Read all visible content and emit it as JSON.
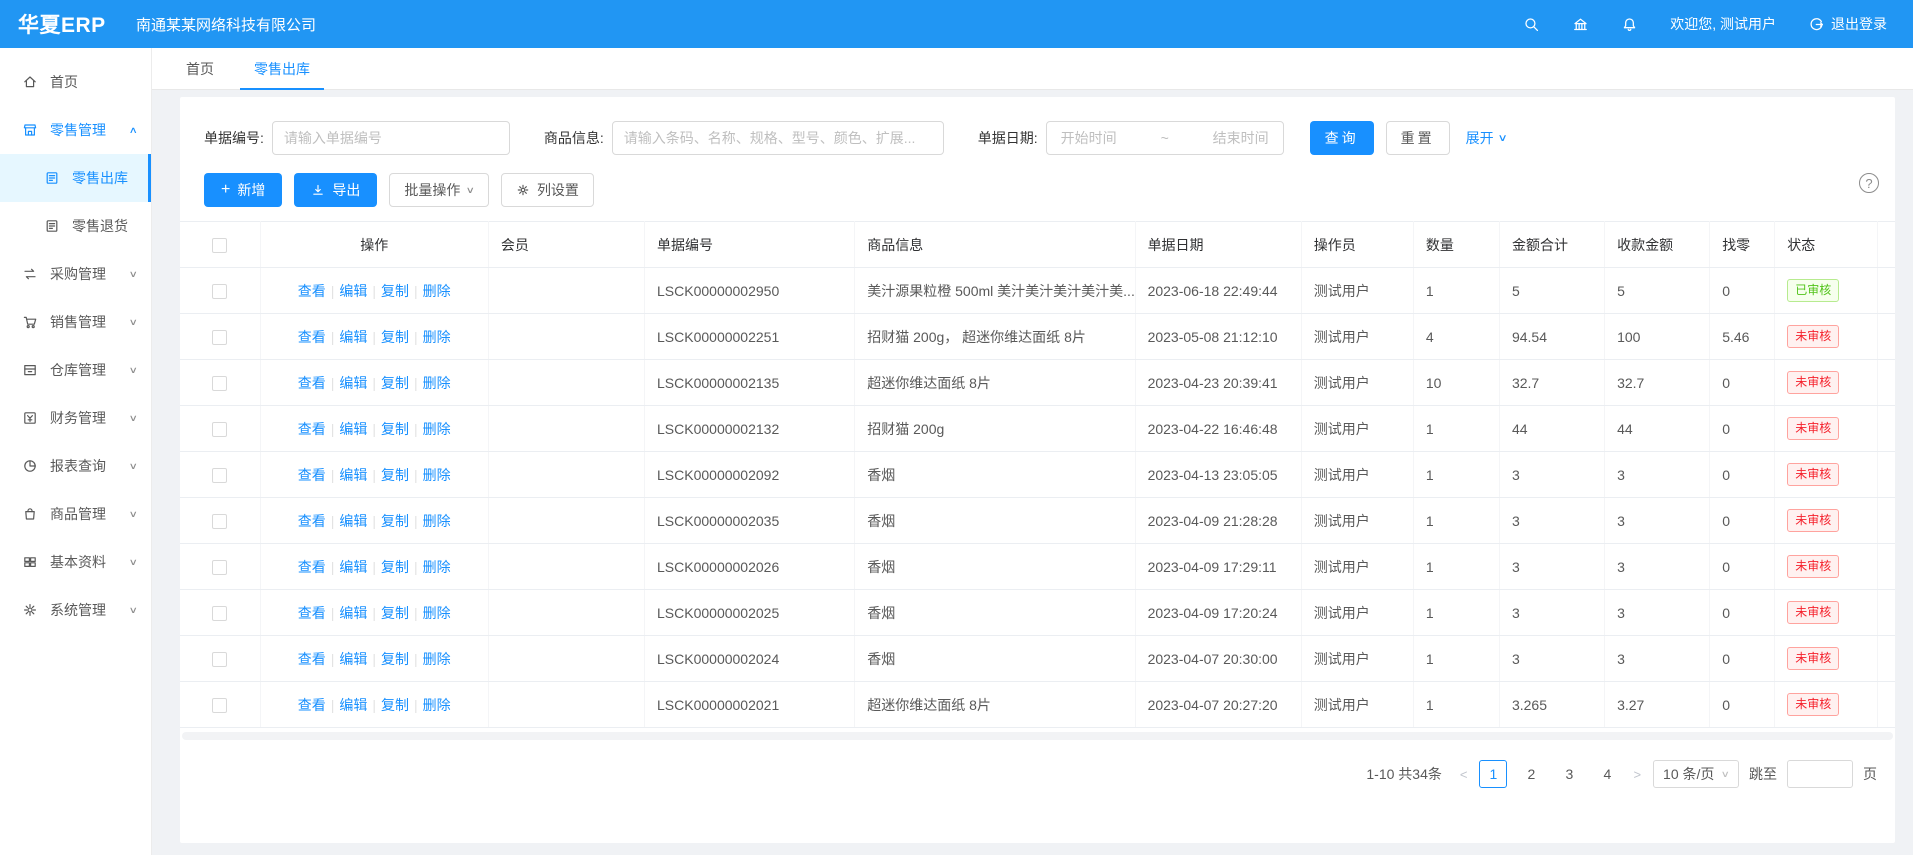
{
  "topbar": {
    "logo": "华夏ERP",
    "company": "南通某某网络科技有限公司",
    "welcome": "欢迎您, 测试用户",
    "logout": "退出登录"
  },
  "sidebar": {
    "items": [
      {
        "label": "首页",
        "icon": "home"
      },
      {
        "label": "零售管理",
        "icon": "shop",
        "state": "open",
        "arrow": "up",
        "children": [
          {
            "label": "零售出库",
            "icon": "doc",
            "active": true
          },
          {
            "label": "零售退货",
            "icon": "doc",
            "active": false
          }
        ]
      },
      {
        "label": "采购管理",
        "icon": "swap",
        "arrow": "down"
      },
      {
        "label": "销售管理",
        "icon": "cart",
        "arrow": "down"
      },
      {
        "label": "仓库管理",
        "icon": "box",
        "arrow": "down"
      },
      {
        "label": "财务管理",
        "icon": "money",
        "arrow": "down"
      },
      {
        "label": "报表查询",
        "icon": "pie",
        "arrow": "down"
      },
      {
        "label": "商品管理",
        "icon": "bag",
        "arrow": "down"
      },
      {
        "label": "基本资料",
        "icon": "grid",
        "arrow": "down"
      },
      {
        "label": "系统管理",
        "icon": "gear",
        "arrow": "down"
      }
    ]
  },
  "tabs": [
    {
      "label": "首页",
      "active": false
    },
    {
      "label": "零售出库",
      "active": true
    }
  ],
  "filters": {
    "bill_no_label": "单据编号:",
    "bill_no_placeholder": "请输入单据编号",
    "product_label": "商品信息:",
    "product_placeholder": "请输入条码、名称、规格、型号、颜色、扩展...",
    "date_label": "单据日期:",
    "date_start_placeholder": "开始时间",
    "date_separator": "~",
    "date_end_placeholder": "结束时间",
    "search_button": "查询",
    "reset_button": "重置",
    "expand_link": "展开"
  },
  "toolbar": {
    "add_button": "新增",
    "export_button": "导出",
    "batch_button": "批量操作",
    "columns_button": "列设置",
    "help": "?"
  },
  "table": {
    "columns": [
      "",
      "操作",
      "会员",
      "单据编号",
      "商品信息",
      "单据日期",
      "操作员",
      "数量",
      "金额合计",
      "收款金额",
      "找零",
      "状态"
    ],
    "action_labels": [
      "查看",
      "编辑",
      "复制",
      "删除"
    ],
    "rows": [
      {
        "member": "",
        "order_no": "LSCK00000002950",
        "product": "美汁源果粒橙 500ml 美汁美汁美汁美汁美...",
        "date": "2023-06-18 22:49:44",
        "operator": "测试用户",
        "qty": "1",
        "total": "5",
        "received": "5",
        "change": "0",
        "status": "已审核",
        "status_type": "approved"
      },
      {
        "member": "",
        "order_no": "LSCK00000002251",
        "product": "招财猫 200g， 超迷你维达面纸 8片",
        "date": "2023-05-08 21:12:10",
        "operator": "测试用户",
        "qty": "4",
        "total": "94.54",
        "received": "100",
        "change": "5.46",
        "status": "未审核",
        "status_type": "pending"
      },
      {
        "member": "",
        "order_no": "LSCK00000002135",
        "product": "超迷你维达面纸 8片",
        "date": "2023-04-23 20:39:41",
        "operator": "测试用户",
        "qty": "10",
        "total": "32.7",
        "received": "32.7",
        "change": "0",
        "status": "未审核",
        "status_type": "pending"
      },
      {
        "member": "",
        "order_no": "LSCK00000002132",
        "product": "招财猫 200g",
        "date": "2023-04-22 16:46:48",
        "operator": "测试用户",
        "qty": "1",
        "total": "44",
        "received": "44",
        "change": "0",
        "status": "未审核",
        "status_type": "pending"
      },
      {
        "member": "",
        "order_no": "LSCK00000002092",
        "product": "香烟",
        "date": "2023-04-13 23:05:05",
        "operator": "测试用户",
        "qty": "1",
        "total": "3",
        "received": "3",
        "change": "0",
        "status": "未审核",
        "status_type": "pending"
      },
      {
        "member": "",
        "order_no": "LSCK00000002035",
        "product": "香烟",
        "date": "2023-04-09 21:28:28",
        "operator": "测试用户",
        "qty": "1",
        "total": "3",
        "received": "3",
        "change": "0",
        "status": "未审核",
        "status_type": "pending"
      },
      {
        "member": "",
        "order_no": "LSCK00000002026",
        "product": "香烟",
        "date": "2023-04-09 17:29:11",
        "operator": "测试用户",
        "qty": "1",
        "total": "3",
        "received": "3",
        "change": "0",
        "status": "未审核",
        "status_type": "pending"
      },
      {
        "member": "",
        "order_no": "LSCK00000002025",
        "product": "香烟",
        "date": "2023-04-09 17:20:24",
        "operator": "测试用户",
        "qty": "1",
        "total": "3",
        "received": "3",
        "change": "0",
        "status": "未审核",
        "status_type": "pending"
      },
      {
        "member": "",
        "order_no": "LSCK00000002024",
        "product": "香烟",
        "date": "2023-04-07 20:30:00",
        "operator": "测试用户",
        "qty": "1",
        "total": "3",
        "received": "3",
        "change": "0",
        "status": "未审核",
        "status_type": "pending"
      },
      {
        "member": "",
        "order_no": "LSCK00000002021",
        "product": "超迷你维达面纸 8片",
        "date": "2023-04-07 20:27:20",
        "operator": "测试用户",
        "qty": "1",
        "total": "3.265",
        "received": "3.27",
        "change": "0",
        "status": "未审核",
        "status_type": "pending"
      }
    ]
  },
  "pagination": {
    "range_text": "1-10 共34条",
    "pages": [
      "1",
      "2",
      "3",
      "4"
    ],
    "active_page": "1",
    "page_size": "10 条/页",
    "jump_label": "跳至",
    "page_unit": "页"
  },
  "colors": {
    "topbar_blue": "#2196f3",
    "accent_blue": "#1890ff",
    "approved_green": "#52c41a",
    "pending_red": "#f5222d"
  }
}
